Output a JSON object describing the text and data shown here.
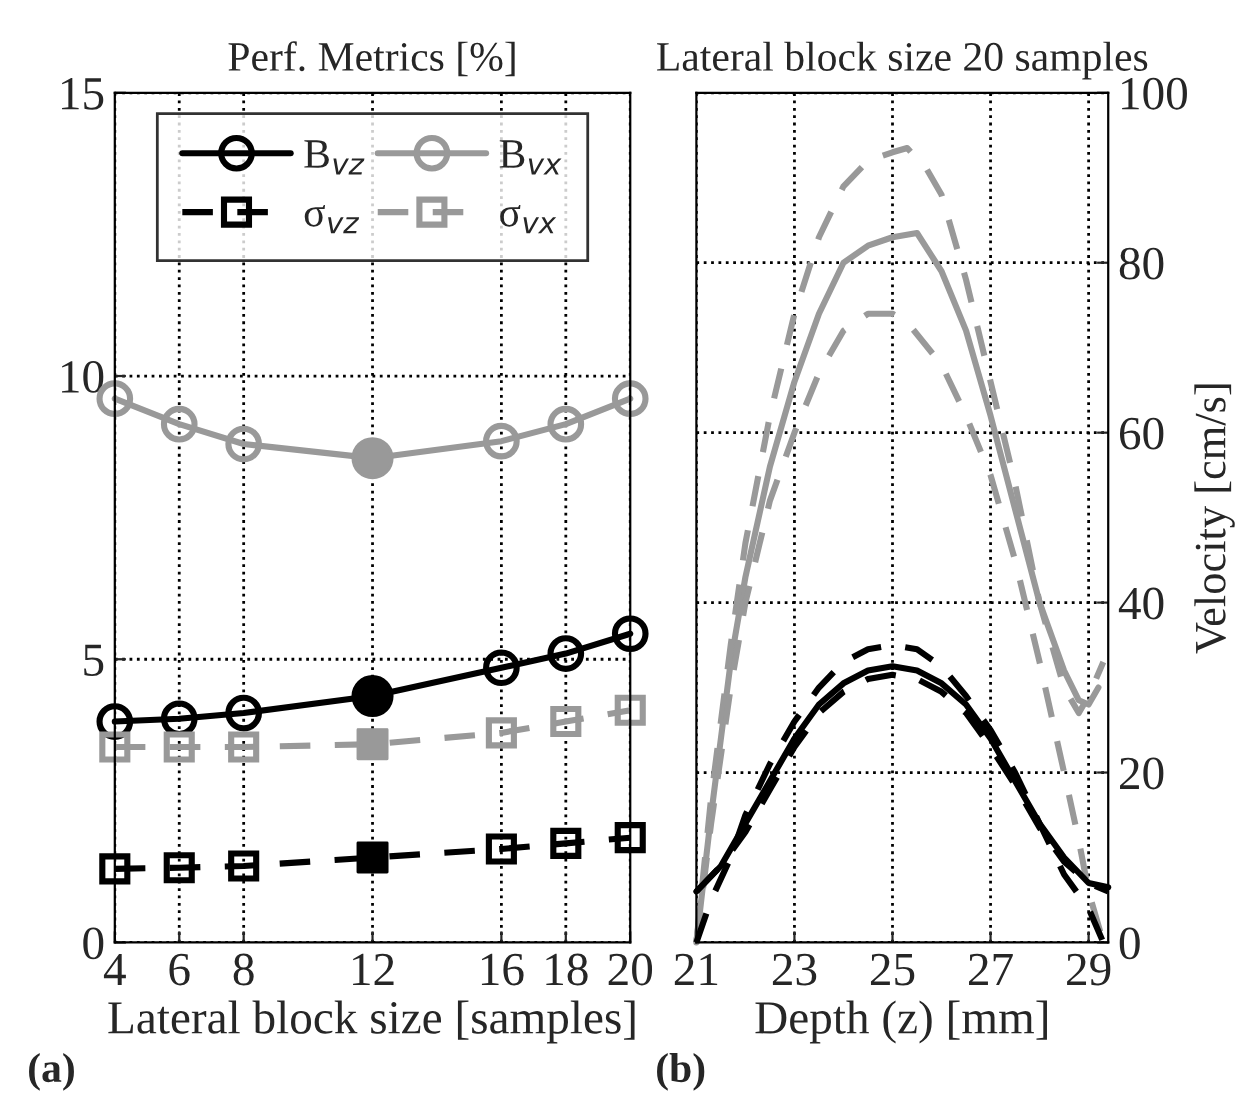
{
  "chart_data": [
    {
      "type": "line",
      "title": "Perf. Metrics [%]",
      "xlabel": "Lateral block size [samples]",
      "annotations": [
        "(a)"
      ],
      "x": [
        4,
        6,
        8,
        12,
        16,
        18,
        20
      ],
      "xlim": [
        4,
        20
      ],
      "xticks": [
        4,
        6,
        8,
        12,
        16,
        18,
        20
      ],
      "ylim": [
        0,
        15
      ],
      "yticks": [
        0,
        5,
        10,
        15
      ],
      "grid": true,
      "legend": "top",
      "series": [
        {
          "name": "B$_{vz}$",
          "color": "#000000",
          "marker": "circle",
          "line_style": "solid",
          "values": [
            3.9,
            3.95,
            4.05,
            4.35,
            4.85,
            5.1,
            5.45
          ]
        },
        {
          "name": "B$_{vx}$",
          "color": "#999999",
          "marker": "circle",
          "line_style": "solid",
          "values": [
            9.6,
            9.15,
            8.8,
            8.55,
            8.85,
            9.15,
            9.6
          ]
        },
        {
          "name": "σ$_{vz}$",
          "color": "#000000",
          "marker": "square",
          "line_style": "dashed",
          "values": [
            1.3,
            1.32,
            1.35,
            1.5,
            1.65,
            1.75,
            1.85
          ]
        },
        {
          "name": "σ$_{vx}$",
          "color": "#999999",
          "marker": "square",
          "line_style": "dashed",
          "values": [
            3.45,
            3.45,
            3.45,
            3.5,
            3.7,
            3.9,
            4.1
          ]
        },
        {
          "type": "scatter",
          "color": "#000000",
          "marker": "circle",
          "x": [
            12
          ],
          "values": [
            4.35
          ]
        },
        {
          "type": "scatter",
          "color": "#999999",
          "marker": "circle",
          "x": [
            12
          ],
          "values": [
            8.55
          ]
        },
        {
          "type": "scatter",
          "color": "#000000",
          "marker": "square",
          "x": [
            12
          ],
          "values": [
            1.5
          ]
        },
        {
          "type": "scatter",
          "color": "#999999",
          "marker": "square",
          "x": [
            12
          ],
          "values": [
            3.5
          ]
        }
      ]
    },
    {
      "type": "line",
      "title": "Lateral block size 20 samples",
      "xlabel": "Depth (z) [mm]",
      "ylabel": "Velocity [cm/s]",
      "annotations": [
        "(b)"
      ],
      "xlim": [
        21,
        29.4
      ],
      "xticks": [
        21,
        23,
        25,
        27,
        29
      ],
      "ylim": [
        0,
        100
      ],
      "yticks": [
        0,
        20,
        40,
        60,
        80,
        100
      ],
      "grid": true,
      "legend": false,
      "marker": "none",
      "series": [
        {
          "color": "#999999",
          "line_style": "solid",
          "x": [
            21,
            21.3,
            21.7,
            22,
            22.5,
            23,
            23.5,
            24,
            24.5,
            25,
            25.5,
            26,
            26.5,
            27,
            27.5,
            28,
            28.5,
            28.8,
            29,
            29.2
          ],
          "values": [
            0,
            15,
            33,
            43,
            56,
            66,
            74,
            80,
            82,
            83,
            83.5,
            79,
            72,
            62,
            51,
            40,
            32,
            28.5,
            28,
            30
          ]
        },
        {
          "color": "#999999",
          "line_style": "dashed",
          "x": [
            21,
            21.3,
            21.7,
            22,
            22.5,
            23,
            23.5,
            24,
            24.5,
            25,
            25.3,
            25.7,
            26,
            26.5,
            27,
            27.5,
            28,
            28.5,
            28.8,
            29,
            29.3
          ],
          "values": [
            0,
            17,
            35,
            47,
            62,
            74,
            83,
            89,
            92,
            93,
            93.5,
            91,
            88,
            78,
            66,
            54,
            40,
            30,
            27,
            29,
            33
          ]
        },
        {
          "color": "#999999",
          "line_style": "dashed",
          "x": [
            21,
            21.3,
            21.7,
            22,
            22.5,
            23,
            23.5,
            24,
            24.5,
            25,
            25.3,
            26,
            26.5,
            27,
            27.5,
            28,
            28.5,
            28.8,
            29,
            29.3
          ],
          "values": [
            0,
            14,
            30,
            40,
            52,
            60,
            67,
            72,
            74,
            74,
            73,
            68,
            62,
            55,
            45,
            33,
            20,
            12,
            6,
            0
          ]
        },
        {
          "color": "#000000",
          "line_style": "solid",
          "x": [
            21,
            21.5,
            22,
            22.5,
            23,
            23.5,
            24,
            24.5,
            25,
            25.5,
            26,
            26.5,
            27,
            27.5,
            28,
            28.5,
            29,
            29.4
          ],
          "values": [
            6,
            9,
            14,
            19,
            24,
            28,
            30.5,
            32,
            32.5,
            32,
            30.5,
            28,
            24,
            19,
            14,
            10,
            7,
            6.5
          ]
        },
        {
          "color": "#000000",
          "line_style": "dashed",
          "x": [
            21,
            21.3,
            21.7,
            22,
            22.5,
            23,
            23.5,
            24,
            24.5,
            25,
            25.5,
            26,
            26.5,
            27,
            27.5,
            28,
            28.5,
            29,
            29.3
          ],
          "values": [
            0,
            5,
            10,
            15,
            21,
            26,
            30,
            33,
            34.5,
            35,
            34.5,
            32.5,
            29,
            25,
            20,
            14,
            8,
            4,
            0
          ]
        },
        {
          "color": "#000000",
          "line_style": "dashed",
          "x": [
            21,
            21.5,
            22,
            22.5,
            23,
            23.5,
            24,
            24.5,
            25,
            25.5,
            26,
            26.5,
            27,
            27.5,
            28,
            28.5,
            29,
            29.4
          ],
          "values": [
            6,
            9,
            13,
            18,
            23,
            27,
            29.5,
            31,
            31.5,
            31,
            29.5,
            27,
            23,
            18.5,
            13.5,
            9.5,
            7,
            6
          ]
        }
      ]
    }
  ]
}
